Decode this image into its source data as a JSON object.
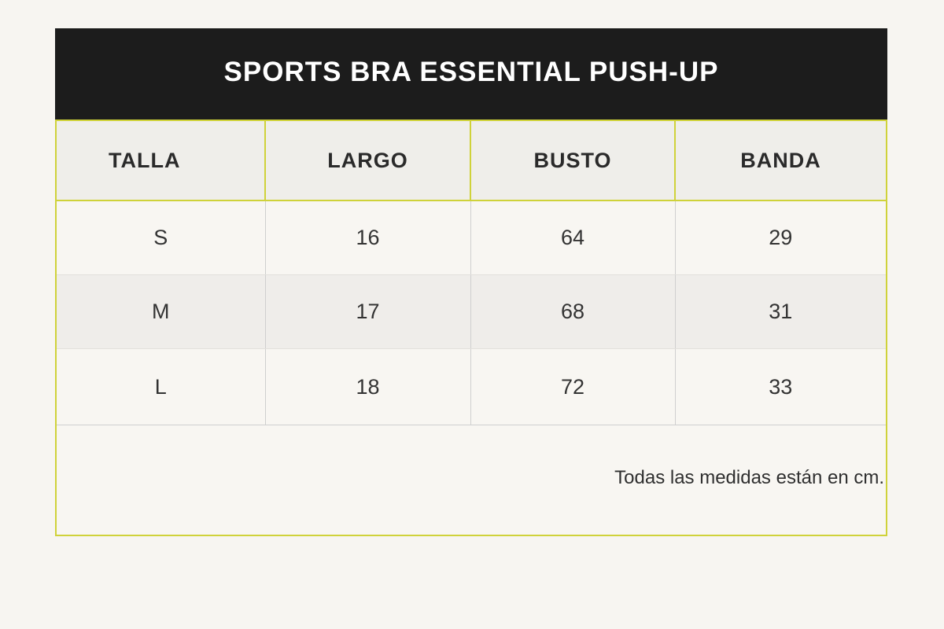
{
  "title": "SPORTS BRA ESSENTIAL PUSH-UP",
  "table": {
    "headers": [
      "TALLA",
      "LARGO",
      "BUSTO",
      "BANDA"
    ],
    "rows": [
      [
        "S",
        "16",
        "64",
        "29"
      ],
      [
        "M",
        "17",
        "68",
        "31"
      ],
      [
        "L",
        "18",
        "72",
        "33"
      ]
    ]
  },
  "note": "Todas las medidas están en cm.",
  "colors": {
    "title_bar": "#1c1c1c",
    "accent_border": "#cfd23a",
    "background": "#f7f5f1"
  }
}
